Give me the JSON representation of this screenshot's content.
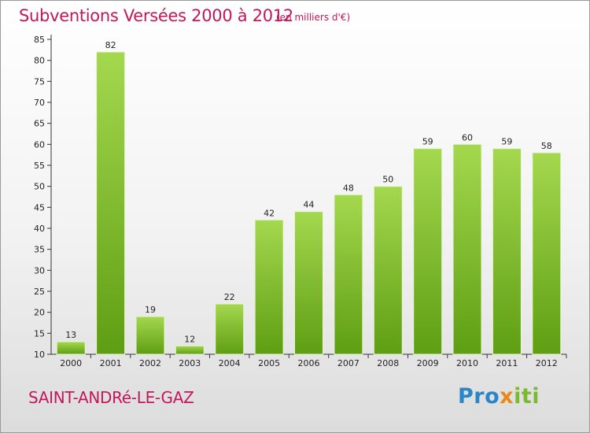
{
  "header": {
    "title": "Subventions Versées 2000 à 2012",
    "unit_note": "(en milliers d'€)"
  },
  "footer": {
    "commune": "SAINT-ANDRé-LE-GAZ",
    "logo": {
      "part1": "Pro",
      "part2": "x",
      "part3": "iti"
    }
  },
  "colors": {
    "title": "#c2185b",
    "bar_light": "#a4d84f",
    "bar_dark": "#5e9e12",
    "logo_blue": "#2b86c9",
    "logo_orange": "#e8891a",
    "logo_green": "#7bb934"
  },
  "chart_data": {
    "type": "bar",
    "title": "Subventions Versées 2000 à 2012",
    "xlabel": "",
    "ylabel": "",
    "categories": [
      "2000",
      "2001",
      "2002",
      "2003",
      "2004",
      "2005",
      "2006",
      "2007",
      "2008",
      "2009",
      "2010",
      "2011",
      "2012"
    ],
    "values": [
      13,
      82,
      19,
      12,
      22,
      42,
      44,
      48,
      50,
      59,
      60,
      59,
      58
    ],
    "ylim": [
      10,
      85
    ],
    "yticks": [
      10,
      15,
      20,
      25,
      30,
      35,
      40,
      45,
      50,
      55,
      60,
      65,
      70,
      75,
      80,
      85
    ],
    "grid": false,
    "legend": "none"
  }
}
